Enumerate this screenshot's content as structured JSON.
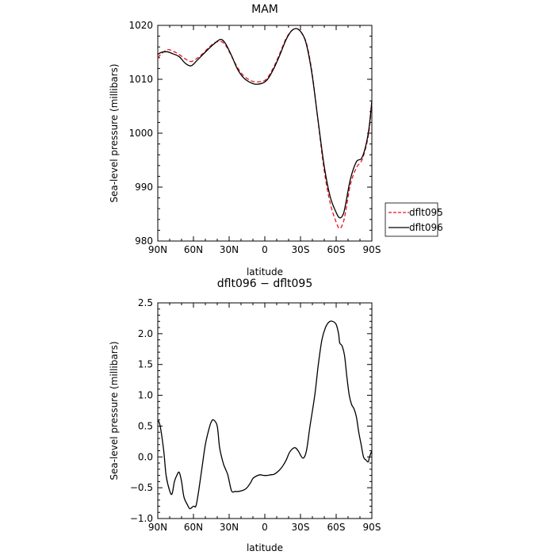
{
  "chart_data": [
    {
      "type": "line",
      "title": "MAM",
      "xlabel": "latitude",
      "ylabel": "Sea-level pressure (millibars)",
      "xlim": [
        90,
        -90
      ],
      "ylim": [
        980,
        1020
      ],
      "x_ticks": [
        90,
        60,
        30,
        0,
        -30,
        -60,
        -90
      ],
      "x_tick_labels": [
        "90N",
        "60N",
        "30N",
        "0",
        "30S",
        "60S",
        "90S"
      ],
      "y_ticks": [
        980,
        990,
        1000,
        1010,
        1020
      ],
      "y_tick_labels": [
        "980",
        "990",
        "1000",
        "1010",
        "1020"
      ],
      "legend": {
        "position": "right-outside",
        "entries": [
          {
            "name": "dflt095",
            "color": "#e8121e",
            "style": "dashed"
          },
          {
            "name": "dflt096",
            "color": "#000000",
            "style": "solid"
          }
        ]
      },
      "series": [
        {
          "name": "dflt095",
          "color": "#e8121e",
          "style": "dashed",
          "x": [
            90,
            87,
            82,
            77,
            72,
            67,
            62,
            57,
            52,
            47,
            42,
            37,
            33,
            28,
            23,
            18,
            13,
            8,
            3,
            0,
            -3,
            -8,
            -13,
            -18,
            -23,
            -28,
            -33,
            -36,
            -40,
            -45,
            -50,
            -55,
            -60,
            -63,
            -66,
            -68,
            -72,
            -77,
            -82,
            -87,
            -90
          ],
          "values": [
            1014.0,
            1014.7,
            1015.5,
            1015.2,
            1014.6,
            1013.8,
            1013.3,
            1013.9,
            1014.8,
            1015.9,
            1016.8,
            1017.0,
            1016.3,
            1014.3,
            1012.2,
            1010.7,
            1009.9,
            1009.5,
            1009.6,
            1009.8,
            1010.5,
            1012.5,
            1015.0,
            1017.6,
            1019.1,
            1019.3,
            1017.8,
            1015.8,
            1010.8,
            1001.8,
            993.0,
            987.0,
            983.5,
            982.3,
            983.5,
            985.5,
            990.5,
            993.6,
            995.2,
            999.5,
            1005.5
          ]
        },
        {
          "name": "dflt096",
          "color": "#000000",
          "style": "solid",
          "x": [
            90,
            87,
            82,
            77,
            72,
            67,
            62,
            57,
            52,
            47,
            42,
            37,
            33,
            28,
            23,
            18,
            13,
            8,
            3,
            0,
            -3,
            -8,
            -13,
            -18,
            -23,
            -28,
            -33,
            -36,
            -40,
            -45,
            -50,
            -55,
            -60,
            -63,
            -66,
            -68,
            -72,
            -77,
            -82,
            -87,
            -90
          ],
          "values": [
            1014.6,
            1015.0,
            1015.1,
            1014.7,
            1014.2,
            1013.0,
            1012.5,
            1013.5,
            1014.6,
            1015.7,
            1016.7,
            1017.4,
            1016.6,
            1014.4,
            1011.9,
            1010.3,
            1009.5,
            1009.1,
            1009.2,
            1009.5,
            1010.2,
            1012.2,
            1014.7,
            1017.4,
            1019.1,
            1019.3,
            1017.8,
            1015.5,
            1010.5,
            1002.0,
            993.8,
            988.2,
            985.3,
            984.3,
            985.0,
            986.9,
            991.5,
            994.7,
            995.6,
            1000.0,
            1006.0
          ]
        }
      ]
    },
    {
      "type": "line",
      "title": "dflt096 − dflt095",
      "xlabel": "latitude",
      "ylabel": "Sea-level pressure (millibars)",
      "xlim": [
        90,
        -90
      ],
      "ylim": [
        -1.0,
        2.5
      ],
      "x_ticks": [
        90,
        60,
        30,
        0,
        -30,
        -60,
        -90
      ],
      "x_tick_labels": [
        "90N",
        "60N",
        "30N",
        "0",
        "30S",
        "60S",
        "90S"
      ],
      "y_ticks": [
        -1.0,
        -0.5,
        0.0,
        0.5,
        1.0,
        1.5,
        2.0,
        2.5
      ],
      "y_tick_labels": [
        "−1.0",
        "−0.5",
        "0.0",
        "0.5",
        "1.0",
        "1.5",
        "2.0",
        "2.5"
      ],
      "series": [
        {
          "name": "dflt096 − dflt095",
          "color": "#000000",
          "style": "solid",
          "x": [
            90,
            88,
            85,
            83,
            80,
            78,
            76,
            74,
            72,
            70,
            68,
            65,
            63,
            60,
            58,
            56,
            53,
            50,
            47,
            45,
            43,
            40,
            38,
            35,
            33,
            31,
            28,
            25,
            22,
            18,
            15,
            12,
            10,
            7,
            4,
            1,
            -2,
            -5,
            -8,
            -12,
            -15,
            -18,
            -21,
            -25,
            -28,
            -32,
            -35,
            -38,
            -42,
            -45,
            -48,
            -51,
            -54,
            -57,
            -60,
            -62,
            -63,
            -65,
            -67,
            -69,
            -71,
            -73,
            -75,
            -77,
            -79,
            -81,
            -83,
            -85,
            -87,
            -88,
            -90
          ],
          "values": [
            0.6,
            0.5,
            0.1,
            -0.3,
            -0.55,
            -0.6,
            -0.4,
            -0.3,
            -0.25,
            -0.4,
            -0.65,
            -0.78,
            -0.84,
            -0.8,
            -0.8,
            -0.6,
            -0.2,
            0.2,
            0.45,
            0.57,
            0.6,
            0.5,
            0.15,
            -0.1,
            -0.2,
            -0.3,
            -0.55,
            -0.56,
            -0.56,
            -0.54,
            -0.5,
            -0.42,
            -0.35,
            -0.31,
            -0.29,
            -0.3,
            -0.3,
            -0.29,
            -0.28,
            -0.22,
            -0.15,
            -0.05,
            0.08,
            0.15,
            0.1,
            -0.02,
            0.1,
            0.5,
            1.0,
            1.5,
            1.9,
            2.1,
            2.19,
            2.2,
            2.15,
            2.0,
            1.85,
            1.8,
            1.65,
            1.3,
            1.0,
            0.85,
            0.78,
            0.65,
            0.4,
            0.2,
            0.0,
            -0.05,
            -0.08,
            0.0,
            0.1
          ]
        }
      ]
    }
  ]
}
